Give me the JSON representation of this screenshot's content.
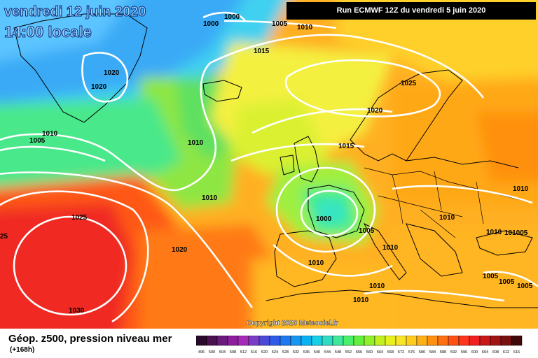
{
  "header": {
    "date_line": "vendredi 12 juin 2020",
    "time_line": "14:00 locale",
    "run_info": "Run ECMWF 12Z du vendredi 5 juin 2020"
  },
  "footer": {
    "copyright": "Copyright 2020 Meteociel.fr",
    "legend_title": "Géop. z500, pression niveau mer",
    "forecast_step": "(+168h)"
  },
  "scale": {
    "values": [
      "496",
      "500",
      "504",
      "508",
      "512",
      "516",
      "520",
      "524",
      "528",
      "532",
      "536",
      "540",
      "544",
      "548",
      "552",
      "556",
      "560",
      "564",
      "568",
      "572",
      "576",
      "580",
      "584",
      "588",
      "592",
      "596",
      "600",
      "604",
      "608",
      "612",
      "616"
    ],
    "colors": [
      "#2a0a2a",
      "#4a1050",
      "#6a1a7a",
      "#8c1e9e",
      "#a52ab8",
      "#7a3cc8",
      "#4c48d8",
      "#2f5ae8",
      "#1e78f0",
      "#1696f2",
      "#0ab2f4",
      "#18cfe8",
      "#2edcc4",
      "#3ee89a",
      "#4aef6a",
      "#62f03c",
      "#90f02a",
      "#c2f020",
      "#e8f020",
      "#f8e428",
      "#ffcc20",
      "#ffb018",
      "#ff9010",
      "#ff7010",
      "#ff5016",
      "#ff341c",
      "#ee2020",
      "#c81818",
      "#a01414",
      "#781010",
      "#400808"
    ]
  },
  "isobars": [
    {
      "label": "1000",
      "label_key": "iso_1000_a"
    },
    {
      "label": "1000",
      "label_key": "iso_1000_b"
    },
    {
      "label": "1005",
      "label_key": "iso_1005_a"
    },
    {
      "label": "1010",
      "label_key": "iso_1010_a"
    },
    {
      "label": "1015",
      "label_key": "iso_1015_a"
    },
    {
      "label": "1020",
      "label_key": "iso_1020_a"
    },
    {
      "label": "1020",
      "label_key": "iso_1020_b"
    },
    {
      "label": "1010",
      "label_key": "iso_1010_b"
    },
    {
      "label": "1005",
      "label_key": "iso_1005_b"
    },
    {
      "label": "1010",
      "label_key": "iso_1010_c"
    },
    {
      "label": "1010",
      "label_key": "iso_1010_d"
    },
    {
      "label": "1025",
      "label_key": "iso_1025_a"
    },
    {
      "label": "25",
      "label_key": "iso_25_a"
    },
    {
      "label": "1020",
      "label_key": "iso_1020_c"
    },
    {
      "label": "1030",
      "label_key": "iso_1030_a"
    },
    {
      "label": "1025",
      "label_key": "iso_1025_b"
    },
    {
      "label": "1020",
      "label_key": "iso_1020_d"
    },
    {
      "label": "1015",
      "label_key": "iso_1015_b"
    },
    {
      "label": "1000",
      "label_key": "iso_1000_c"
    },
    {
      "label": "1005",
      "label_key": "iso_1005_c"
    },
    {
      "label": "1010",
      "label_key": "iso_1010_e"
    },
    {
      "label": "1010",
      "label_key": "iso_1010_f"
    },
    {
      "label": "1010",
      "label_key": "iso_1010_g"
    },
    {
      "label": "1010",
      "label_key": "iso_1010_h"
    },
    {
      "label": "1010",
      "label_key": "iso_1010_i"
    },
    {
      "label": "1010",
      "label_key": "iso_1010_j"
    },
    {
      "label": "1010",
      "label_key": "iso_1010_k"
    },
    {
      "label": "101005",
      "label_key": "iso_101005"
    },
    {
      "label": "1005",
      "label_key": "iso_1005_d"
    },
    {
      "label": "1005",
      "label_key": "iso_1005_e"
    },
    {
      "label": "1005",
      "label_key": "iso_1005_f"
    }
  ]
}
